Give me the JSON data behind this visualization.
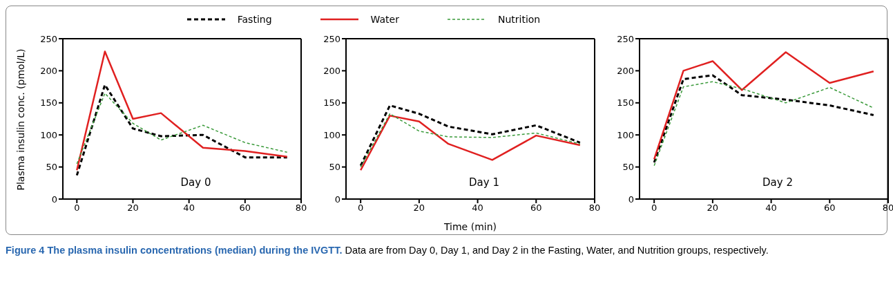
{
  "chart_data": [
    {
      "type": "line",
      "title": "Figure 4 The plasma insulin concentrations (median) during the IVGTT.",
      "ylabel": "Plasma insulin conc. (pmol/L)",
      "annotations": [
        "Day 0",
        "Data are from Day 0, Day 1, and Day 2 in the Fasting, Water, and Nutrition groups, respectively."
      ],
      "x": [
        0,
        10,
        20,
        30,
        45,
        60,
        75
      ],
      "xlim": [
        -5,
        80
      ],
      "xticks": [
        0,
        20,
        40,
        60,
        80
      ],
      "ylim": [
        0,
        250
      ],
      "yticks": [
        0,
        50,
        100,
        150,
        200,
        250
      ],
      "legend": "top",
      "series": [
        {
          "name": "Fasting",
          "color": "#000000",
          "line_style": "dashed",
          "values": [
            37,
            178,
            110,
            98,
            100,
            65,
            65
          ]
        },
        {
          "name": "Water",
          "color": "#e02020",
          "line_style": "solid",
          "values": [
            45,
            230,
            125,
            134,
            80,
            75,
            66
          ]
        },
        {
          "name": "Nutrition",
          "color": "#3a9a3a",
          "line_style": "dotted",
          "values": [
            55,
            165,
            118,
            92,
            115,
            88,
            73
          ]
        }
      ]
    },
    {
      "type": "line",
      "xlabel": "Time (min)",
      "annotations": [
        "Day 1"
      ],
      "x": [
        0,
        10,
        20,
        30,
        45,
        60,
        75
      ],
      "xlim": [
        -5,
        80
      ],
      "xticks": [
        0,
        20,
        40,
        60,
        80
      ],
      "ylim": [
        0,
        250
      ],
      "yticks": [
        0,
        50,
        100,
        150,
        200,
        250
      ],
      "series": [
        {
          "color": "#000000",
          "line_style": "dashed",
          "values": [
            52,
            146,
            133,
            113,
            101,
            115,
            88
          ]
        },
        {
          "color": "#e02020",
          "line_style": "solid",
          "values": [
            45,
            130,
            121,
            86,
            61,
            99,
            84
          ]
        },
        {
          "color": "#3a9a3a",
          "line_style": "dotted",
          "values": [
            50,
            133,
            106,
            97,
            96,
            103,
            86
          ]
        }
      ]
    },
    {
      "type": "line",
      "annotations": [
        "Day 2"
      ],
      "x": [
        0,
        10,
        20,
        30,
        45,
        60,
        75
      ],
      "xlim": [
        -5,
        80
      ],
      "xticks": [
        0,
        20,
        40,
        60,
        80
      ],
      "ylim": [
        0,
        250
      ],
      "yticks": [
        0,
        50,
        100,
        150,
        200,
        250
      ],
      "series": [
        {
          "color": "#000000",
          "line_style": "dashed",
          "values": [
            57,
            187,
            193,
            162,
            155,
            146,
            131
          ]
        },
        {
          "color": "#e02020",
          "line_style": "solid",
          "values": [
            62,
            200,
            215,
            170,
            229,
            181,
            199
          ]
        },
        {
          "color": "#3a9a3a",
          "line_style": "dotted",
          "values": [
            52,
            175,
            183,
            172,
            150,
            174,
            142
          ]
        }
      ]
    }
  ]
}
